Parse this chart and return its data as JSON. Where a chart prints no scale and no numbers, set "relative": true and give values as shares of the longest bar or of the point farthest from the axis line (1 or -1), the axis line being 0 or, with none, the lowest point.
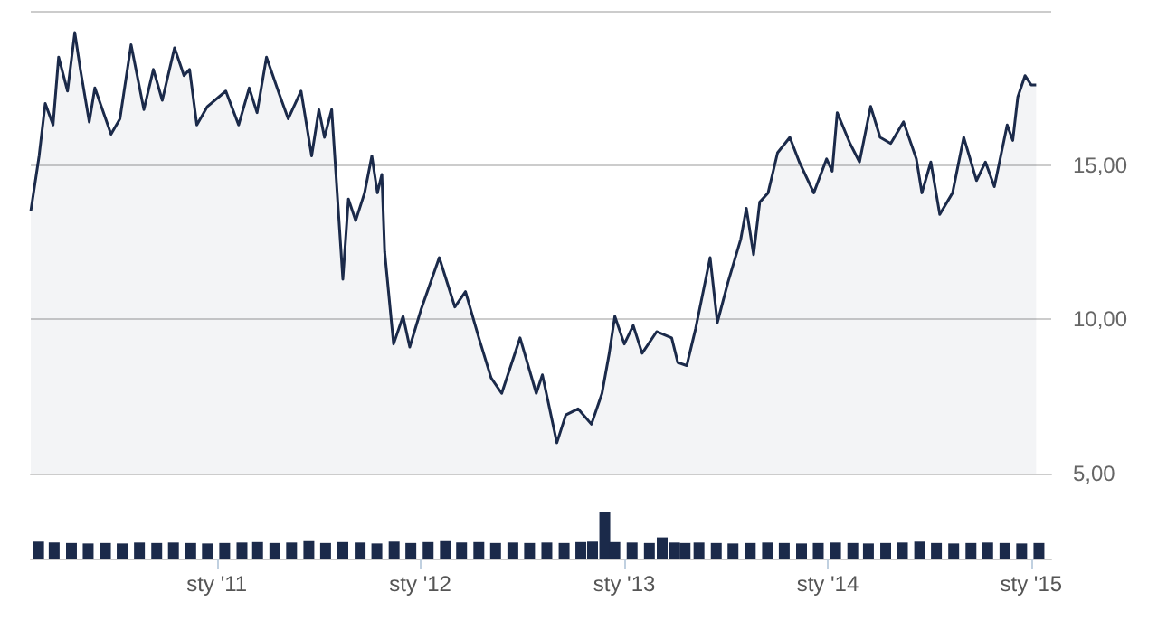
{
  "chart_data": [
    {
      "type": "area",
      "marker": "none",
      "grid": "y",
      "tick_labels": "y",
      "xlim": [
        "2010-02-01",
        "2015-02-06"
      ],
      "ylim": [
        5,
        20
      ],
      "yticks": [
        {
          "value": 5,
          "label": "5,00"
        },
        {
          "value": 10,
          "label": "10,00"
        },
        {
          "value": 15,
          "label": "15,00"
        },
        {
          "value": 20,
          "label": null
        }
      ],
      "series": [
        {
          "color": "#1b2a4a",
          "x": [
            "2010-02-01",
            "2010-02-16",
            "2010-02-27",
            "2010-03-13",
            "2010-03-23",
            "2010-04-08",
            "2010-04-21",
            "2010-05-01",
            "2010-05-17",
            "2010-05-27",
            "2010-06-25",
            "2010-07-11",
            "2010-07-31",
            "2010-08-23",
            "2010-09-09",
            "2010-09-25",
            "2010-10-17",
            "2010-11-03",
            "2010-11-13",
            "2010-11-26",
            "2010-12-15",
            "2011-01-17",
            "2011-02-09",
            "2011-02-28",
            "2011-03-14",
            "2011-03-31",
            "2011-04-23",
            "2011-05-09",
            "2011-06-01",
            "2011-06-20",
            "2011-07-03",
            "2011-07-13",
            "2011-07-26",
            "2011-08-15",
            "2011-08-25",
            "2011-09-07",
            "2011-09-23",
            "2011-10-06",
            "2011-10-16",
            "2011-10-24",
            "2011-10-29",
            "2011-11-14",
            "2011-12-01",
            "2011-12-13",
            "2012-01-02",
            "2012-02-04",
            "2012-03-03",
            "2012-03-22",
            "2012-04-15",
            "2012-05-07",
            "2012-05-26",
            "2012-06-28",
            "2012-07-27",
            "2012-08-07",
            "2012-09-02",
            "2012-09-18",
            "2012-10-10",
            "2012-11-03",
            "2012-11-22",
            "2012-12-05",
            "2012-12-15",
            "2013-01-01",
            "2013-01-17",
            "2013-02-02",
            "2013-02-28",
            "2013-03-27",
            "2013-04-07",
            "2013-04-23",
            "2013-05-09",
            "2013-06-04",
            "2013-06-17",
            "2013-07-06",
            "2013-07-29",
            "2013-08-08",
            "2013-08-21",
            "2013-09-01",
            "2013-09-16",
            "2013-10-03",
            "2013-10-25",
            "2013-11-11",
            "2013-12-07",
            "2013-12-30",
            "2014-01-09",
            "2014-01-18",
            "2014-02-10",
            "2014-02-27",
            "2014-03-19",
            "2014-04-05",
            "2014-04-24",
            "2014-05-17",
            "2014-06-09",
            "2014-06-19",
            "2014-07-05",
            "2014-07-21",
            "2014-08-13",
            "2014-09-02",
            "2014-09-25",
            "2014-10-11",
            "2014-10-27",
            "2014-11-19",
            "2014-11-29",
            "2014-12-08",
            "2014-12-21",
            "2015-01-01",
            "2015-01-10"
          ],
          "values": [
            13.5,
            15.3,
            17.0,
            16.3,
            18.5,
            17.4,
            19.3,
            18.1,
            16.4,
            17.5,
            16.0,
            16.5,
            18.9,
            16.8,
            18.1,
            17.1,
            18.8,
            17.9,
            18.1,
            16.3,
            16.9,
            17.4,
            16.3,
            17.5,
            16.7,
            18.5,
            17.3,
            16.5,
            17.4,
            15.3,
            16.8,
            15.9,
            16.8,
            11.3,
            13.9,
            13.2,
            14.1,
            15.3,
            14.1,
            14.7,
            12.2,
            9.2,
            10.1,
            9.1,
            10.3,
            12.0,
            10.4,
            10.9,
            9.4,
            8.1,
            7.6,
            9.4,
            7.6,
            8.2,
            6.0,
            6.9,
            7.1,
            6.6,
            7.6,
            8.9,
            10.1,
            9.2,
            9.8,
            8.9,
            9.6,
            9.4,
            8.6,
            8.5,
            9.7,
            12.0,
            9.9,
            11.2,
            12.6,
            13.6,
            12.1,
            13.8,
            14.1,
            15.4,
            15.9,
            15.1,
            14.1,
            15.2,
            14.8,
            16.7,
            15.7,
            15.1,
            16.9,
            15.9,
            15.7,
            16.4,
            15.2,
            14.1,
            15.1,
            13.4,
            14.1,
            15.9,
            14.5,
            15.1,
            14.3,
            16.3,
            15.8,
            17.2,
            17.9,
            17.6,
            17.6
          ]
        }
      ]
    },
    {
      "type": "bar",
      "relative": true,
      "tick_labels": "x",
      "xlim": [
        "2010-02-01",
        "2015-02-06"
      ],
      "xticks": [
        {
          "value": "2011-01-01",
          "label": "sty '11"
        },
        {
          "value": "2012-01-01",
          "label": "sty '12"
        },
        {
          "value": "2013-01-01",
          "label": "sty '13"
        },
        {
          "value": "2014-01-01",
          "label": "sty '14"
        },
        {
          "value": "2015-01-01",
          "label": "sty '15"
        }
      ],
      "series": [
        {
          "color": "#1b2a4a",
          "x": [
            "2010-02-15",
            "2010-03-15",
            "2010-04-15",
            "2010-05-15",
            "2010-06-15",
            "2010-07-15",
            "2010-08-15",
            "2010-09-15",
            "2010-10-15",
            "2010-11-15",
            "2010-12-15",
            "2011-01-15",
            "2011-02-15",
            "2011-03-15",
            "2011-04-15",
            "2011-05-15",
            "2011-06-15",
            "2011-07-15",
            "2011-08-15",
            "2011-09-15",
            "2011-10-15",
            "2011-11-15",
            "2011-12-15",
            "2012-01-15",
            "2012-02-15",
            "2012-03-15",
            "2012-04-15",
            "2012-05-15",
            "2012-06-15",
            "2012-07-15",
            "2012-08-15",
            "2012-09-15",
            "2012-10-15",
            "2012-11-05",
            "2012-11-27",
            "2012-12-15",
            "2013-01-15",
            "2013-02-15",
            "2013-03-10",
            "2013-04-01",
            "2013-04-20",
            "2013-05-15",
            "2013-06-15",
            "2013-07-15",
            "2013-08-15",
            "2013-09-15",
            "2013-10-15",
            "2013-11-15",
            "2013-12-15",
            "2014-01-15",
            "2014-02-15",
            "2014-03-15",
            "2014-04-15",
            "2014-05-15",
            "2014-06-15",
            "2014-07-15",
            "2014-08-15",
            "2014-09-15",
            "2014-10-15",
            "2014-11-15",
            "2014-12-15",
            "2015-01-15"
          ],
          "values": [
            0.36,
            0.34,
            0.33,
            0.32,
            0.33,
            0.32,
            0.34,
            0.33,
            0.34,
            0.33,
            0.32,
            0.33,
            0.34,
            0.35,
            0.33,
            0.34,
            0.37,
            0.33,
            0.35,
            0.34,
            0.32,
            0.36,
            0.33,
            0.35,
            0.37,
            0.34,
            0.35,
            0.33,
            0.34,
            0.33,
            0.34,
            0.33,
            0.35,
            0.36,
            1,
            0.35,
            0.34,
            0.33,
            0.45,
            0.34,
            0.33,
            0.34,
            0.33,
            0.32,
            0.33,
            0.34,
            0.33,
            0.32,
            0.33,
            0.34,
            0.33,
            0.32,
            0.33,
            0.34,
            0.36,
            0.33,
            0.32,
            0.33,
            0.34,
            0.33,
            0.32,
            0.33
          ]
        }
      ]
    }
  ]
}
